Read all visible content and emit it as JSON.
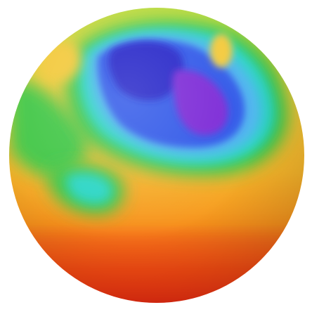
{
  "image": {
    "subject": "color-mapped-sphere",
    "background": "#ffffff",
    "palette": {
      "red": "#e8140f",
      "red_orange": "#f24c12",
      "orange": "#f7941d",
      "yellow_orange": "#f6b52a",
      "yellow": "#f3c93a",
      "lime": "#b9dc3c",
      "green": "#37c84a",
      "cyan": "#29d6c6",
      "light_blue": "#4fb4f0",
      "blue": "#2f56e8",
      "deep_blue": "#2424c8",
      "violet": "#7a26d6"
    }
  }
}
